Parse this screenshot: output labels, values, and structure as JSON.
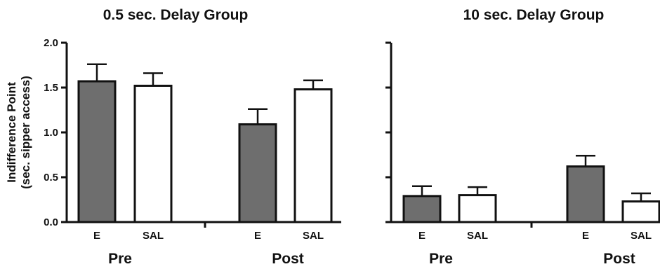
{
  "chart_data": [
    {
      "type": "bar",
      "title": "0.5 sec. Delay Group",
      "ylabel": "Indifference Point\n(sec. sipper access)",
      "ylim": [
        0,
        2.0
      ],
      "yticks": [
        "0.0",
        "0.5",
        "1.0",
        "1.5",
        "2.0"
      ],
      "show_tick_labels": true,
      "groups": [
        {
          "label": "Pre",
          "bars": [
            {
              "label": "E",
              "value": 1.57,
              "error": 0.19,
              "color": "#6e6e6e"
            },
            {
              "label": "SAL",
              "value": 1.52,
              "error": 0.14,
              "color": "#ffffff"
            }
          ]
        },
        {
          "label": "Post",
          "bars": [
            {
              "label": "E",
              "value": 1.09,
              "error": 0.17,
              "color": "#6e6e6e"
            },
            {
              "label": "SAL",
              "value": 1.48,
              "error": 0.1,
              "color": "#ffffff"
            }
          ]
        }
      ]
    },
    {
      "type": "bar",
      "title": "10 sec. Delay Group",
      "ylabel": "",
      "ylim": [
        0,
        2.0
      ],
      "yticks": [
        "",
        "",
        "",
        "",
        ""
      ],
      "show_tick_labels": false,
      "groups": [
        {
          "label": "Pre",
          "bars": [
            {
              "label": "E",
              "value": 0.29,
              "error": 0.11,
              "color": "#6e6e6e"
            },
            {
              "label": "SAL",
              "value": 0.3,
              "error": 0.09,
              "color": "#ffffff"
            }
          ]
        },
        {
          "label": "Post",
          "bars": [
            {
              "label": "E",
              "value": 0.62,
              "error": 0.12,
              "color": "#6e6e6e"
            },
            {
              "label": "SAL",
              "value": 0.23,
              "error": 0.09,
              "color": "#ffffff"
            }
          ]
        }
      ]
    }
  ]
}
